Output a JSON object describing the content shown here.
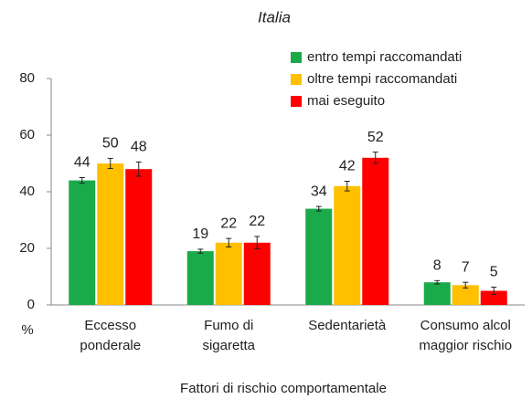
{
  "chart_data": {
    "type": "bar",
    "title": "Italia",
    "categories": [
      [
        "Eccesso",
        "ponderale"
      ],
      [
        "Fumo di",
        "sigaretta"
      ],
      [
        "Sedentarietà"
      ],
      [
        "Consumo alcol",
        "maggior rischio"
      ]
    ],
    "series": [
      {
        "name": "entro tempi raccomandati",
        "color": "#1aaa4a",
        "values": [
          44,
          19,
          34,
          8
        ],
        "errors": [
          1,
          0.7,
          0.8,
          0.6
        ]
      },
      {
        "name": "oltre tempi raccomandati",
        "color": "#ffc000",
        "values": [
          50,
          22,
          42,
          7
        ],
        "errors": [
          1.8,
          1.5,
          1.7,
          1
        ]
      },
      {
        "name": "mai eseguito",
        "color": "#ff0000",
        "values": [
          48,
          22,
          52,
          5
        ],
        "errors": [
          2.5,
          2.2,
          2,
          1.3
        ]
      }
    ],
    "ylabel": "%",
    "xlabel": "Fattori di rischio comportamentale",
    "ylim": [
      0,
      80
    ],
    "yticks": [
      0,
      20,
      40,
      60,
      80
    ],
    "grid": false,
    "legend": "top-right"
  }
}
